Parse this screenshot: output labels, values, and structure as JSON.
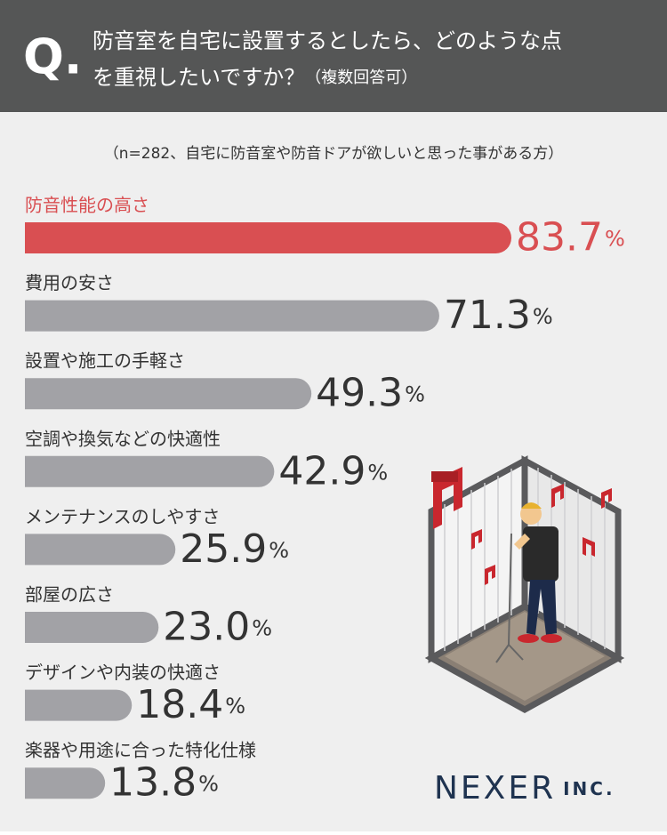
{
  "header": {
    "q_mark": "Q.",
    "question_lines": [
      "防音室を自宅に設置するとしたら、どのような点",
      "を重視したいですか？"
    ],
    "note": "（複数回答可）"
  },
  "chart_data": {
    "type": "hbar",
    "subtitle": "（n=282、自宅に防音室や防音ドアが欲しいと思った事がある方）",
    "categories": [
      "防音性能の高さ",
      "費用の安さ",
      "設置や施工の手軽さ",
      "空調や換気などの快適性",
      "メンテナンスのしやすさ",
      "部屋の広さ",
      "デザインや内装の快適さ",
      "楽器や用途に合った特化仕様"
    ],
    "values": [
      83.7,
      71.3,
      49.3,
      42.9,
      25.9,
      23.0,
      18.4,
      13.8
    ],
    "value_labels": [
      "83.7",
      "71.3",
      "49.3",
      "42.9",
      "25.9",
      "23.0",
      "18.4",
      "13.8"
    ],
    "unit": "%",
    "xlim": [
      0,
      100
    ],
    "color": "#a2a2a6",
    "highlight": "防音性能の高さ",
    "highlight_color": "#d94f52"
  },
  "footer": {
    "logo": "NEXER",
    "logo_suffix": "INC."
  }
}
